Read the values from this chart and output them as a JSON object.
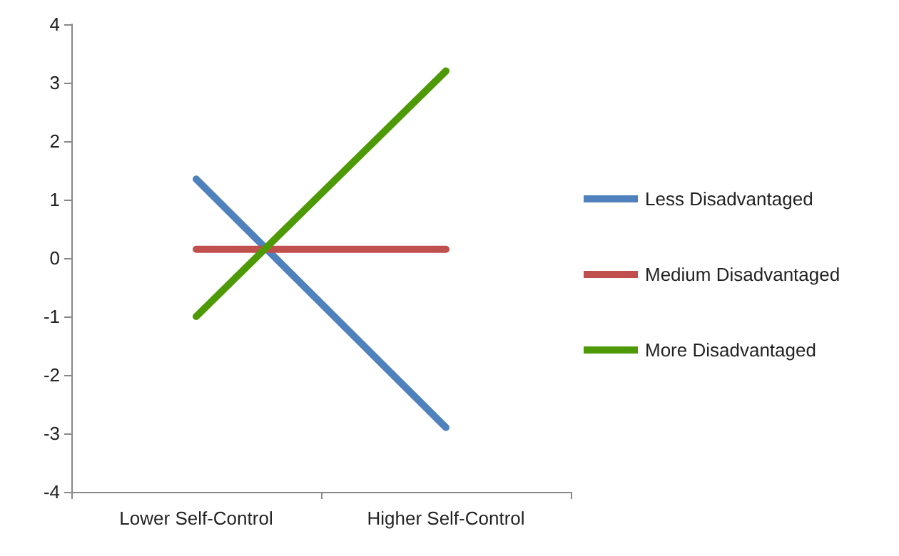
{
  "chart_data": {
    "type": "line",
    "categories": [
      "Lower Self-Control",
      "Higher Self-Control"
    ],
    "series": [
      {
        "name": "Less Disadvantaged",
        "color": "#4f81bd",
        "values": [
          1.35,
          -2.9
        ]
      },
      {
        "name": "Medium Disadvantaged",
        "color": "#c0504d",
        "values": [
          0.15,
          0.15
        ]
      },
      {
        "name": "More Disadvantaged",
        "color": "#4e9a06",
        "values": [
          -1.0,
          3.2
        ]
      }
    ],
    "ylim": [
      -4,
      4
    ],
    "yticks": [
      -4,
      -3,
      -2,
      -1,
      0,
      1,
      2,
      3,
      4
    ],
    "grid": false,
    "legend": "right",
    "marker": "none",
    "line_style": "solid"
  }
}
